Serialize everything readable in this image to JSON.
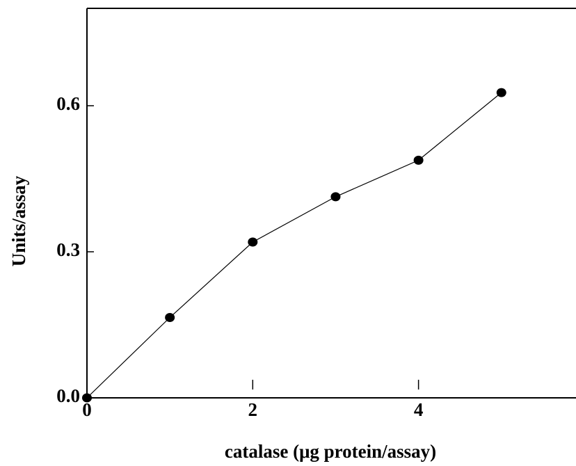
{
  "chart_data": {
    "type": "line",
    "x_label": "catalase (μg protein/assay)",
    "y_label": "Units/assay",
    "x": [
      0,
      1,
      2,
      3,
      4,
      5
    ],
    "series": [
      {
        "color": "#000000",
        "values": [
          0,
          0.165,
          0.32,
          0.413,
          0.488,
          0.627
        ]
      }
    ],
    "xlim": [
      0,
      5.9
    ],
    "xticks": [
      0,
      2,
      4
    ],
    "ylim": [
      0,
      0.8
    ],
    "yticks": [
      {
        "value": 0,
        "label": "0.0"
      },
      0.3,
      0.6
    ],
    "grid": false
  }
}
